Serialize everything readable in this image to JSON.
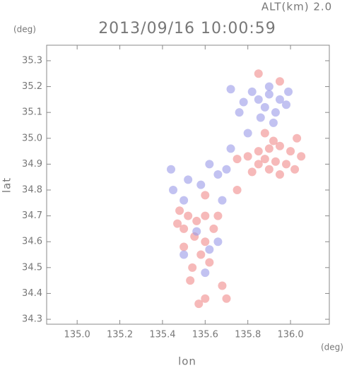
{
  "chart_data": {
    "type": "scatter",
    "title": "2013/09/16 10:00:59",
    "subtitle": "ALT(km) 2.0",
    "x_label": "lon",
    "y_label": "lat",
    "x_unit": "(deg)",
    "y_unit": "(deg)",
    "xlim": [
      134.857,
      136.182
    ],
    "ylim": [
      34.281,
      35.36
    ],
    "xticks": [
      {
        "value": 135,
        "label": "135.0"
      },
      135.2,
      135.4,
      135.6,
      135.8,
      {
        "value": 136,
        "label": "136.0"
      }
    ],
    "yticks": [
      34.3,
      34.4,
      34.5,
      34.6,
      34.7,
      34.8,
      34.9,
      {
        "value": 35,
        "label": "35.0"
      },
      35.1,
      35.2,
      35.3
    ],
    "series": [
      {
        "color": "#f08a8a",
        "x": [
          135.85,
          135.9,
          135.95,
          136.0,
          135.88,
          135.93,
          135.98,
          136.02,
          135.85,
          135.9,
          135.95,
          135.8,
          135.75,
          135.82,
          136.05,
          135.92,
          135.88,
          136.03,
          135.48,
          135.52,
          135.56,
          135.6,
          135.5,
          135.55,
          135.6,
          135.64,
          135.5,
          135.58,
          135.62,
          135.54,
          135.47,
          135.66,
          135.53,
          135.6,
          135.68,
          135.7,
          135.57,
          135.85,
          135.95,
          135.75,
          135.6
        ],
        "y": [
          34.95,
          34.96,
          34.97,
          34.95,
          34.92,
          34.91,
          34.9,
          34.88,
          34.9,
          34.88,
          34.86,
          34.93,
          34.92,
          34.87,
          34.93,
          34.99,
          35.02,
          35.0,
          34.72,
          34.7,
          34.68,
          34.7,
          34.65,
          34.62,
          34.6,
          34.65,
          34.58,
          34.55,
          34.52,
          34.5,
          34.67,
          34.7,
          34.45,
          34.38,
          34.43,
          34.38,
          34.36,
          35.25,
          35.22,
          34.8,
          34.78
        ]
      },
      {
        "color": "#9a9ae8",
        "x": [
          135.85,
          135.9,
          135.95,
          135.88,
          135.93,
          135.82,
          135.9,
          135.98,
          135.86,
          135.92,
          135.78,
          135.72,
          135.76,
          135.99,
          135.62,
          135.66,
          135.7,
          135.58,
          135.52,
          135.44,
          135.5,
          135.56,
          135.62,
          135.5,
          135.66,
          135.6,
          135.45,
          135.68,
          135.72,
          135.8
        ],
        "y": [
          35.15,
          35.17,
          35.15,
          35.12,
          35.1,
          35.18,
          35.2,
          35.13,
          35.08,
          35.06,
          35.14,
          35.19,
          35.1,
          35.18,
          34.9,
          34.86,
          34.88,
          34.82,
          34.84,
          34.88,
          34.76,
          34.64,
          34.57,
          34.55,
          34.6,
          34.48,
          34.8,
          34.76,
          34.96,
          35.02
        ]
      }
    ]
  }
}
